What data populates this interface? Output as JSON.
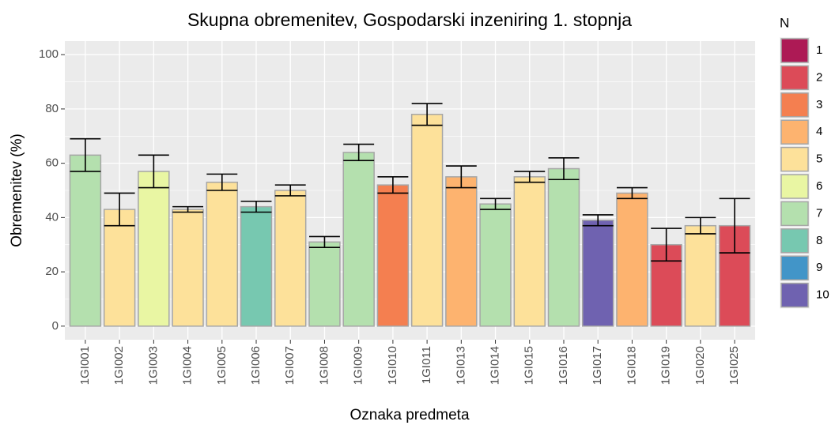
{
  "chart_data": {
    "type": "bar",
    "title": "Skupna obremenitev, Gospodarski inzeniring 1. stopnja",
    "x_label": "Oznaka predmeta",
    "y_label": "Obremenitev (%)",
    "categories": [
      "1GI001",
      "1GI002",
      "1GI003",
      "1GI004",
      "1GI005",
      "1GI006",
      "1GI007",
      "1GI008",
      "1GI009",
      "1GI010",
      "1GI011",
      "1GI013",
      "1GI014",
      "1GI015",
      "1GI016",
      "1GI017",
      "1GI018",
      "1GI019",
      "1GI020",
      "1GI025"
    ],
    "values": [
      63,
      43,
      57,
      43,
      53,
      44,
      50,
      31,
      64,
      52,
      78,
      55,
      45,
      55,
      58,
      39,
      49,
      30,
      37,
      37
    ],
    "errors": [
      6,
      6,
      6,
      1,
      3,
      2,
      2,
      2,
      3,
      3,
      4,
      4,
      2,
      2,
      4,
      2,
      2,
      6,
      3,
      10
    ],
    "groups": [
      7,
      5,
      6,
      5,
      5,
      8,
      5,
      7,
      7,
      3,
      5,
      4,
      7,
      5,
      7,
      10,
      4,
      2,
      5,
      2
    ],
    "fill_scale": {
      "title": "N",
      "levels": [
        1,
        2,
        3,
        4,
        5,
        6,
        7,
        8,
        9,
        10
      ],
      "colors": [
        "#ad1a55",
        "#dc4b58",
        "#f47f50",
        "#fdb36f",
        "#fde19a",
        "#e9f6a3",
        "#b4e0ae",
        "#77c8b0",
        "#4295c8",
        "#6f62b0"
      ]
    },
    "ylim": [
      -5,
      105
    ],
    "yticks": [
      0,
      20,
      40,
      60,
      80,
      100
    ],
    "y_minor_ticks": [
      10,
      30,
      50,
      70,
      90
    ],
    "grid": true
  }
}
